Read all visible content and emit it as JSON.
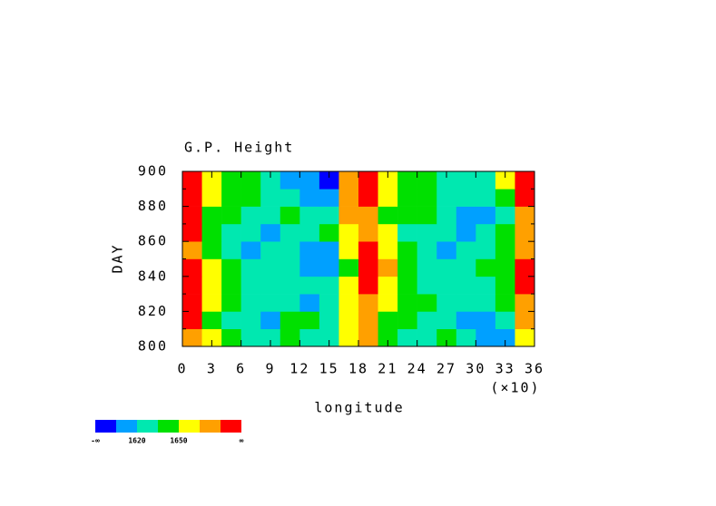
{
  "chart_data": {
    "type": "heatmap",
    "title": "G.P. Height",
    "x_label": "longitude",
    "x_multiplier": "(×10)",
    "y_label": "DAY",
    "x": [
      10,
      30,
      50,
      70,
      90,
      110,
      130,
      150,
      170,
      190,
      210,
      230,
      250,
      270,
      290,
      310,
      330,
      350
    ],
    "y": [
      805,
      815,
      825,
      835,
      845,
      855,
      865,
      875,
      885,
      895
    ],
    "values": [
      [
        1672,
        1650,
        1635,
        1620,
        1625,
        1640,
        1630,
        1625,
        1660,
        1665,
        1640,
        1630,
        1625,
        1635,
        1620,
        1610,
        1615,
        1660
      ],
      [
        1680,
        1645,
        1630,
        1625,
        1615,
        1635,
        1640,
        1630,
        1655,
        1670,
        1645,
        1635,
        1630,
        1625,
        1615,
        1610,
        1625,
        1665
      ],
      [
        1685,
        1650,
        1635,
        1620,
        1630,
        1625,
        1615,
        1625,
        1650,
        1675,
        1655,
        1640,
        1635,
        1630,
        1625,
        1620,
        1635,
        1670
      ],
      [
        1690,
        1655,
        1640,
        1630,
        1620,
        1630,
        1625,
        1630,
        1660,
        1685,
        1660,
        1645,
        1630,
        1625,
        1620,
        1630,
        1640,
        1685
      ],
      [
        1685,
        1650,
        1635,
        1625,
        1630,
        1620,
        1610,
        1605,
        1645,
        1690,
        1665,
        1640,
        1625,
        1620,
        1630,
        1635,
        1645,
        1680
      ],
      [
        1675,
        1645,
        1630,
        1615,
        1620,
        1625,
        1615,
        1610,
        1650,
        1685,
        1660,
        1635,
        1620,
        1615,
        1625,
        1630,
        1640,
        1675
      ],
      [
        1680,
        1640,
        1625,
        1620,
        1615,
        1630,
        1625,
        1635,
        1655,
        1670,
        1650,
        1630,
        1625,
        1620,
        1615,
        1625,
        1635,
        1670
      ],
      [
        1690,
        1645,
        1635,
        1625,
        1630,
        1640,
        1630,
        1625,
        1665,
        1675,
        1645,
        1640,
        1635,
        1625,
        1615,
        1610,
        1630,
        1675
      ],
      [
        1685,
        1650,
        1640,
        1635,
        1625,
        1620,
        1610,
        1605,
        1670,
        1685,
        1650,
        1645,
        1640,
        1630,
        1625,
        1620,
        1640,
        1680
      ],
      [
        1680,
        1655,
        1645,
        1640,
        1630,
        1615,
        1605,
        1600,
        1665,
        1690,
        1655,
        1640,
        1635,
        1625,
        1620,
        1630,
        1650,
        1685
      ]
    ],
    "levels": [
      1605,
      1620,
      1635,
      1650,
      1665,
      1680
    ],
    "colors": [
      "#0000ff",
      "#00a0ff",
      "#00e8b0",
      "#00e000",
      "#ffff00",
      "#ffa000",
      "#ff0000"
    ],
    "colorbar_ticks": [
      1620,
      1650
    ],
    "colorbar_end_labels": [
      "-∞",
      "∞"
    ],
    "xlim": [
      0,
      360
    ],
    "ylim": [
      800,
      900
    ],
    "xticks": [
      {
        "value": 0,
        "label": "0"
      },
      {
        "value": 30,
        "label": "3"
      },
      {
        "value": 60,
        "label": "6"
      },
      {
        "value": 90,
        "label": "9"
      },
      {
        "value": 120,
        "label": "12"
      },
      {
        "value": 150,
        "label": "15"
      },
      {
        "value": 180,
        "label": "18"
      },
      {
        "value": 210,
        "label": "21"
      },
      {
        "value": 240,
        "label": "24"
      },
      {
        "value": 270,
        "label": "27"
      },
      {
        "value": 300,
        "label": "30"
      },
      {
        "value": 330,
        "label": "33"
      },
      {
        "value": 360,
        "label": "36"
      }
    ],
    "yticks": [
      800,
      820,
      840,
      860,
      880,
      900
    ]
  }
}
